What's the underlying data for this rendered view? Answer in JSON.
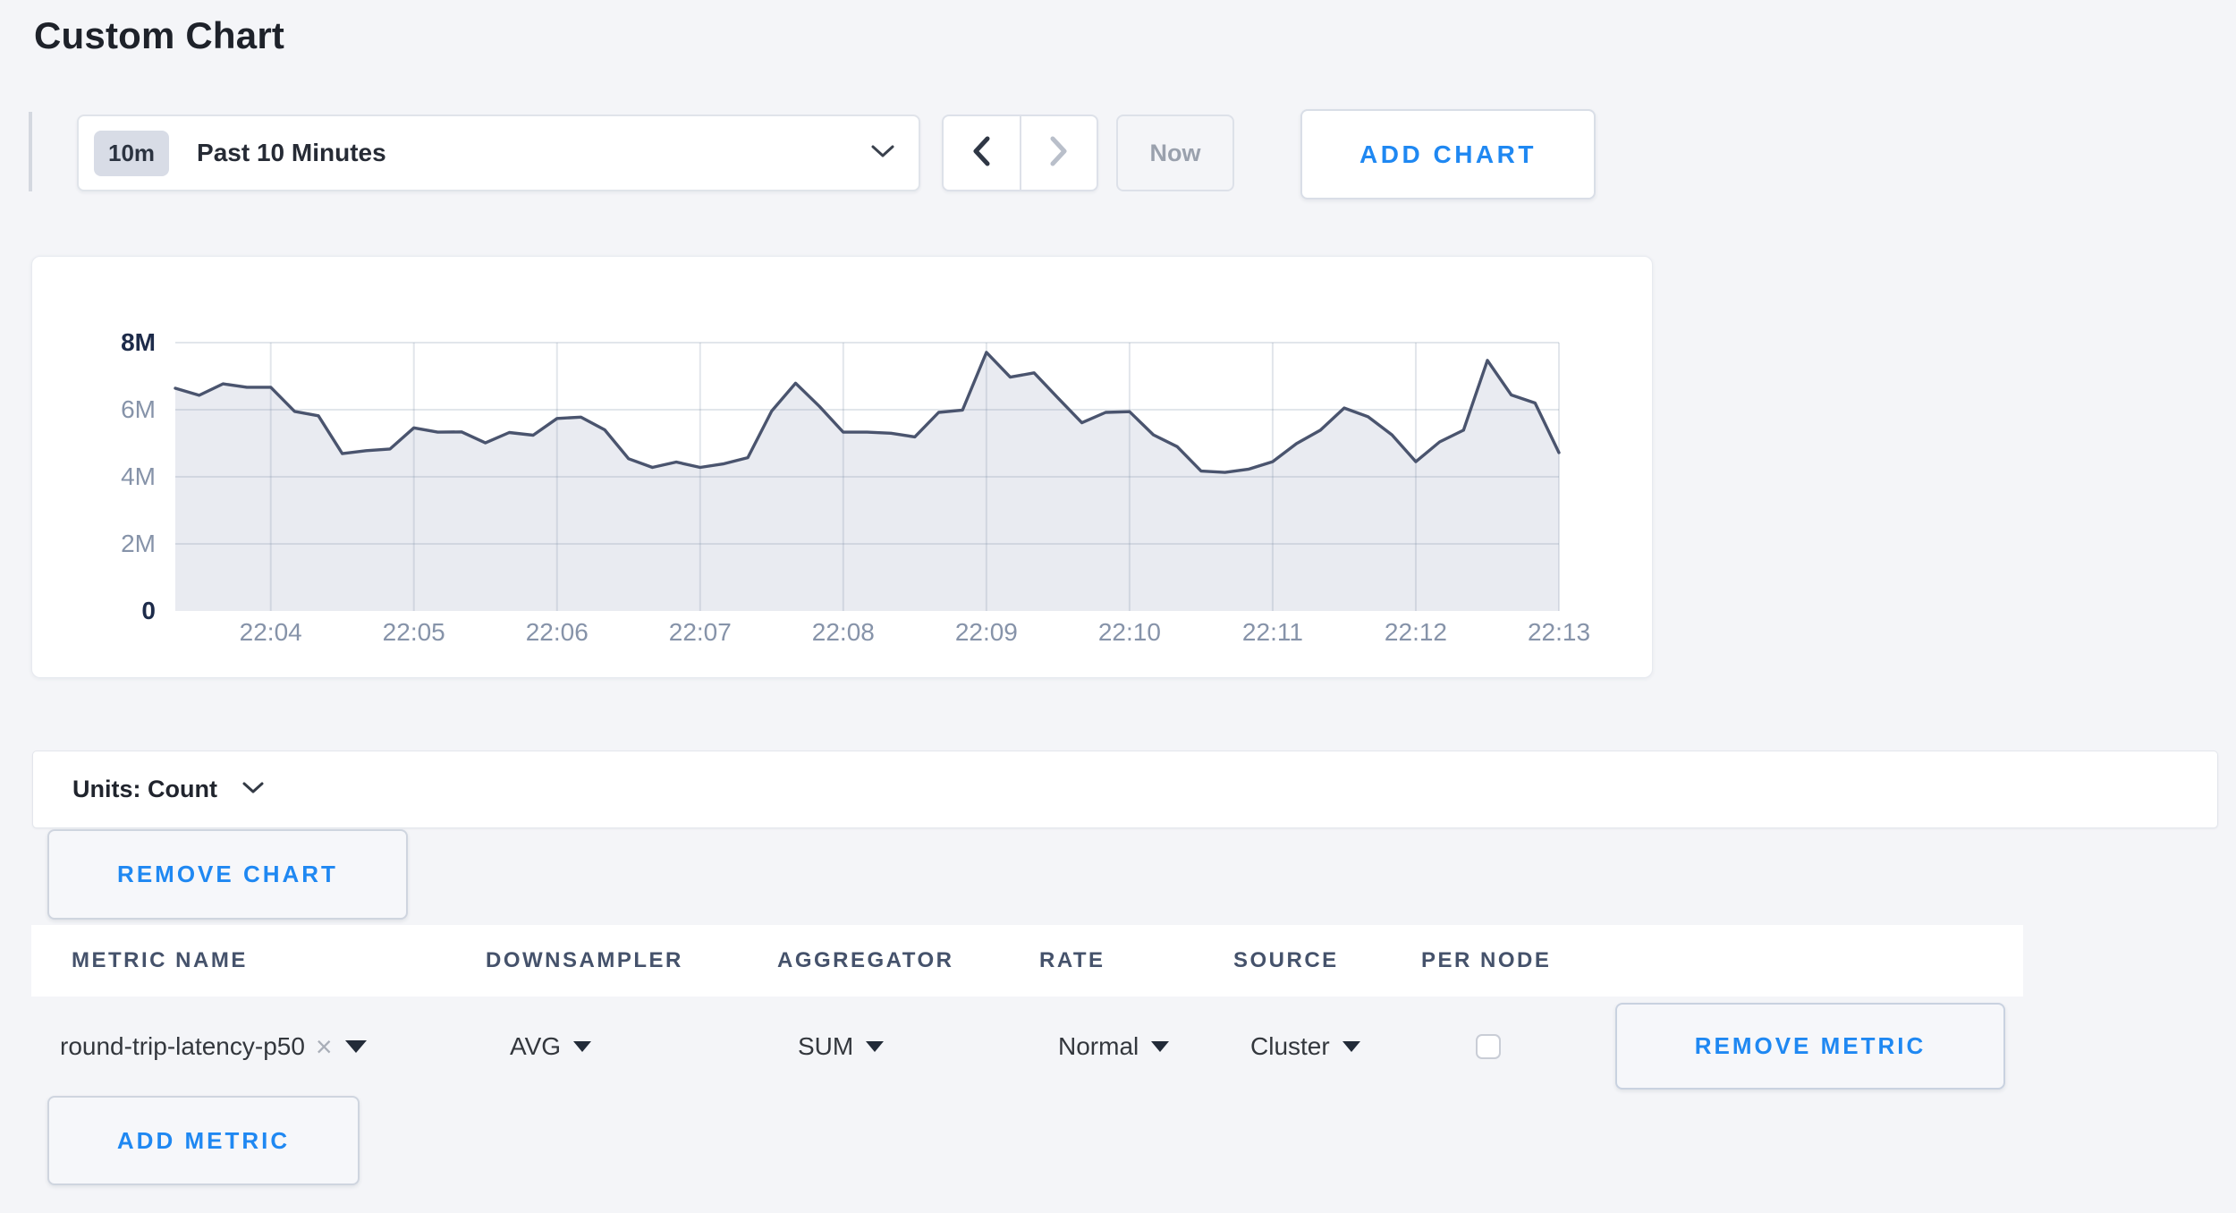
{
  "page": {
    "title": "Custom Chart"
  },
  "toolbar": {
    "time_range": {
      "badge": "10m",
      "label": "Past 10 Minutes"
    },
    "prev_icon": "chevron-left",
    "next_icon": "chevron-right",
    "now_label": "Now",
    "add_chart_label": "ADD CHART"
  },
  "chart_data": {
    "type": "area",
    "title": "",
    "xlabel": "",
    "ylabel": "Count",
    "x_start": "22:03:20",
    "interval_seconds": 10,
    "x_ticks": [
      "22:04",
      "22:05",
      "22:06",
      "22:07",
      "22:08",
      "22:09",
      "22:10",
      "22:11",
      "22:12",
      "22:13"
    ],
    "y_ticks": [
      "0",
      "2M",
      "4M",
      "6M",
      "8M"
    ],
    "ylim_millions": [
      0,
      8
    ],
    "grid": true,
    "legend": false,
    "series": [
      {
        "name": "round-trip-latency-p50",
        "values_millions": [
          6.64,
          6.43,
          6.77,
          6.67,
          6.67,
          5.95,
          5.82,
          4.69,
          4.78,
          4.83,
          5.46,
          5.33,
          5.34,
          5.01,
          5.32,
          5.24,
          5.74,
          5.78,
          5.4,
          4.54,
          4.28,
          4.44,
          4.28,
          4.39,
          4.57,
          5.96,
          6.79,
          6.1,
          5.33,
          5.33,
          5.3,
          5.19,
          5.92,
          5.99,
          7.71,
          6.97,
          7.1,
          6.35,
          5.61,
          5.92,
          5.94,
          5.25,
          4.9,
          4.17,
          4.13,
          4.23,
          4.45,
          4.99,
          5.39,
          6.05,
          5.79,
          5.25,
          4.45,
          5.04,
          5.39,
          7.47,
          6.44,
          6.2,
          4.72
        ]
      }
    ]
  },
  "units_bar": {
    "label": "Units: Count"
  },
  "buttons": {
    "remove_chart": "REMOVE CHART",
    "add_metric": "ADD METRIC"
  },
  "metrics_table": {
    "columns": [
      "METRIC NAME",
      "DOWNSAMPLER",
      "AGGREGATOR",
      "RATE",
      "SOURCE",
      "PER NODE"
    ],
    "rows": [
      {
        "metric_name": "round-trip-latency-p50",
        "downsampler": "AVG",
        "aggregator": "SUM",
        "rate": "Normal",
        "source": "Cluster",
        "per_node_checked": false,
        "remove_label": "REMOVE METRIC"
      }
    ]
  },
  "colors": {
    "accent_blue": "#1f88f2",
    "line": "#4a546e",
    "area_fill": "#e9ebf1",
    "gridline": "rgba(125,140,165,0.22)",
    "axis_extreme_label": "#1d2b4a",
    "axis_label": "#8693a9",
    "page_bg": "#f4f5f8"
  }
}
